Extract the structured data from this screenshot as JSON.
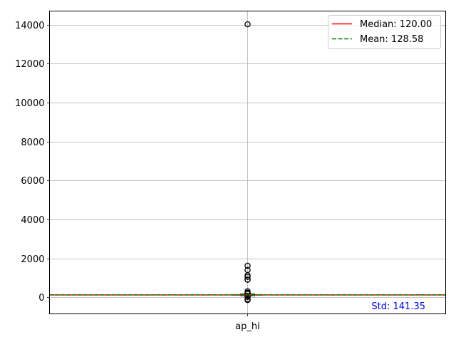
{
  "chart_data": {
    "type": "boxplot",
    "categories": [
      "ap_hi"
    ],
    "ylim": [
      -850,
      14700
    ],
    "yticks": [
      0,
      2000,
      4000,
      6000,
      8000,
      10000,
      12000,
      14000
    ],
    "ytick_labels": [
      "0",
      "2000",
      "4000",
      "6000",
      "8000",
      "10000",
      "12000",
      "14000"
    ],
    "grid": true,
    "box": {
      "q1": 110,
      "median": 120,
      "q3": 140,
      "whisker_low": 85,
      "whisker_high": 170
    },
    "outliers": [
      14020,
      1620,
      1400,
      1130,
      1050,
      907,
      902,
      309,
      240,
      220,
      200,
      190,
      180,
      60,
      40,
      20,
      -100,
      -140
    ],
    "median_line": {
      "value": 120.0,
      "label": "Median: 120.00",
      "color": "#ff0000"
    },
    "mean_line": {
      "value": 128.58,
      "label": "Mean: 128.58",
      "color": "#008000"
    },
    "annotation": {
      "text": "Std: 141.35",
      "color": "#0000ff"
    },
    "legend_position": "upper-right",
    "colors": {
      "box": "#1f77b4",
      "median": "#2ca02c",
      "grid": "#b0b0b0"
    }
  }
}
